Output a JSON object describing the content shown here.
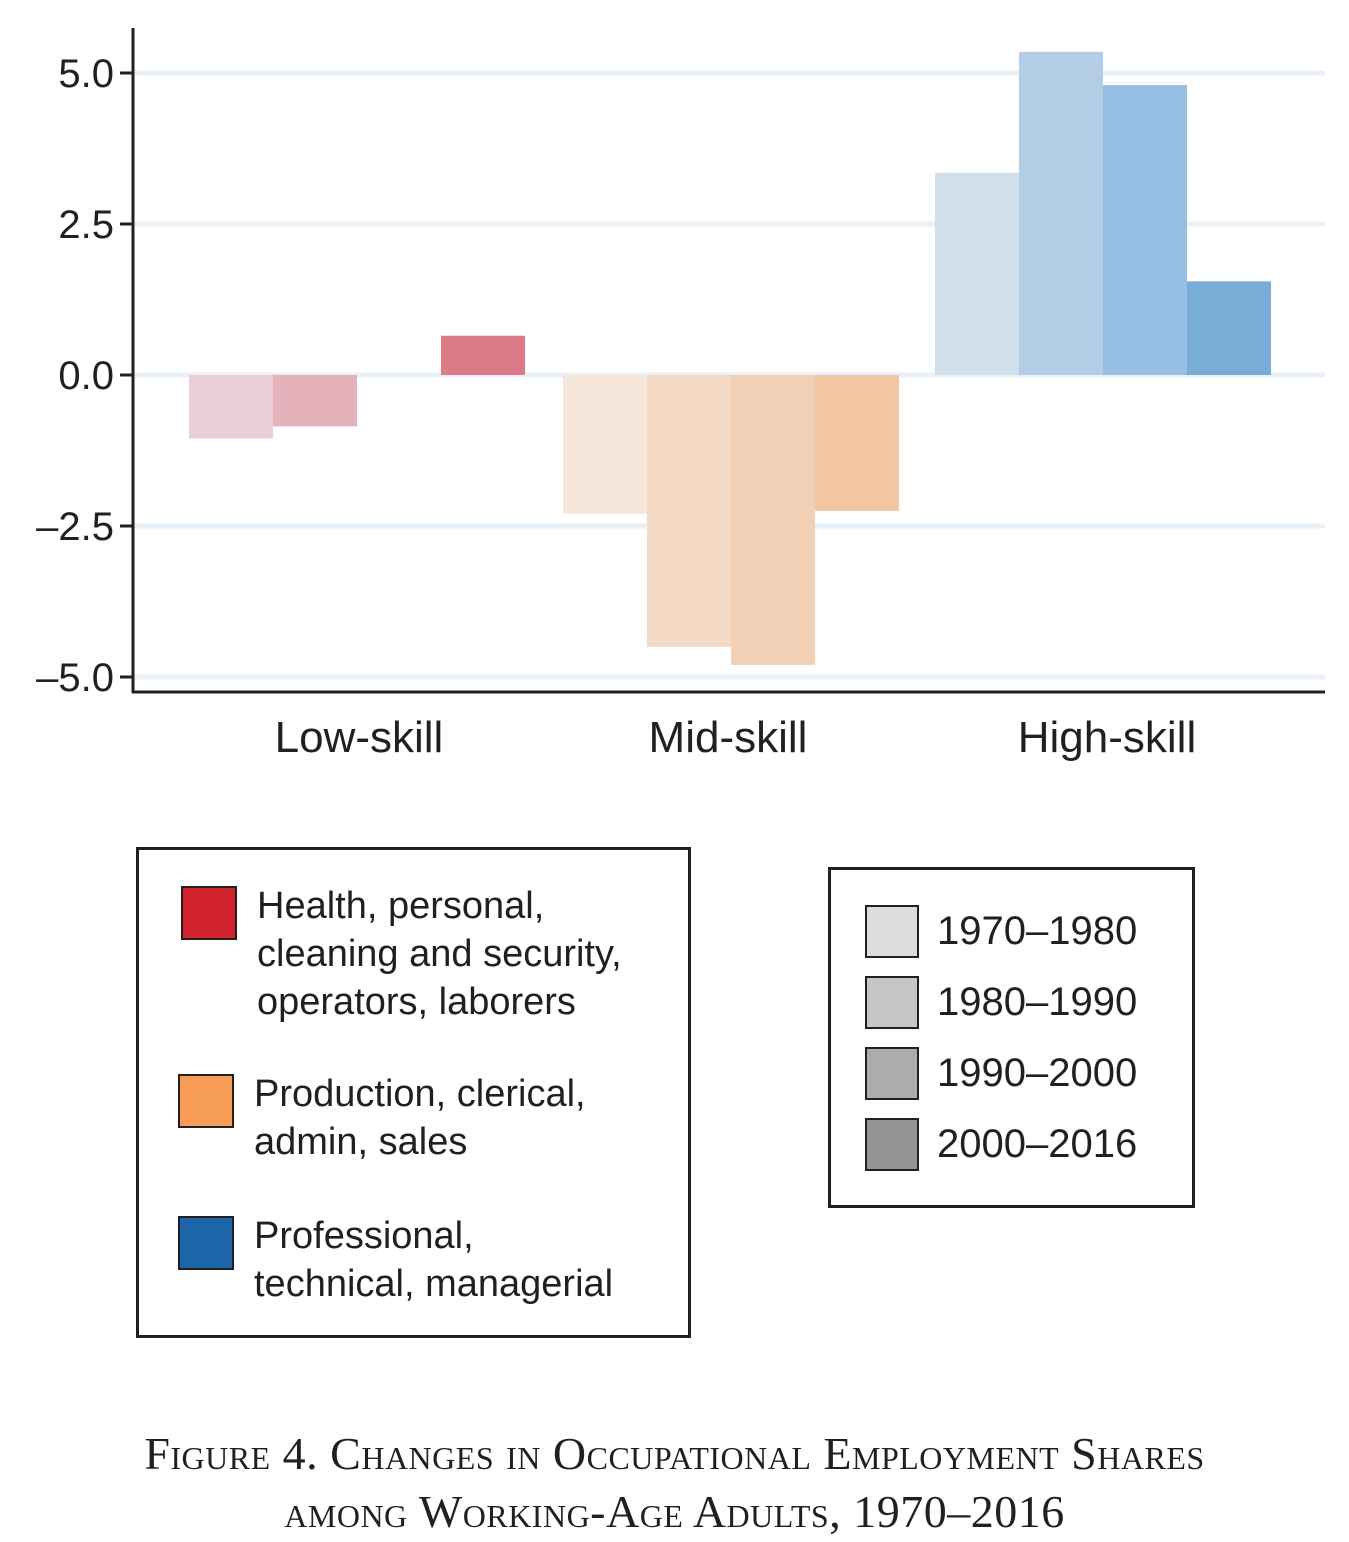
{
  "chart_data": {
    "type": "bar",
    "categories": [
      "Low-skill",
      "Mid-skill",
      "High-skill"
    ],
    "series": [
      {
        "name": "1970–1980",
        "values": [
          -1.05,
          -2.3,
          3.35
        ]
      },
      {
        "name": "1980–1990",
        "values": [
          -0.85,
          -4.5,
          5.35
        ]
      },
      {
        "name": "1990–2000",
        "values": [
          0.0,
          -4.8,
          4.8
        ]
      },
      {
        "name": "2000–2016",
        "values": [
          0.65,
          -2.25,
          1.55
        ]
      }
    ],
    "yticks": [
      "5.0",
      "2.5",
      "0.0",
      "–2.5",
      "–5.0"
    ],
    "ytick_values": [
      5.0,
      2.5,
      0.0,
      -2.5,
      -5.0
    ],
    "ylim": [
      -5.25,
      5.75
    ],
    "grid": true,
    "group_colors": {
      "Low-skill": [
        "#eccfd6",
        "#e5b1ba",
        "#e39ca7",
        "#dc7b87"
      ],
      "Mid-skill": [
        "#f6e7da",
        "#f4dac4",
        "#f2d0b5",
        "#f3c6a2"
      ],
      "High-skill": [
        "#d1dfeb",
        "#b3cde6",
        "#97bfe3",
        "#79acd6"
      ]
    },
    "title": "",
    "xlabel": "",
    "ylabel": ""
  },
  "legend_categories": [
    {
      "label": "Health, personal,\ncleaning and security,\noperators, laborers",
      "color": "#cf222c"
    },
    {
      "label": "Production, clerical,\nadmin, sales",
      "color": "#f79c56"
    },
    {
      "label": "Professional,\ntechnical, managerial",
      "color": "#1d64a9"
    }
  ],
  "legend_periods": [
    {
      "label": "1970–1980",
      "color": "#dcdcdc"
    },
    {
      "label": "1980–1990",
      "color": "#c6c6c6"
    },
    {
      "label": "1990–2000",
      "color": "#acacac"
    },
    {
      "label": "2000–2016",
      "color": "#939393"
    }
  ],
  "caption": {
    "line1": "Figure 4. Changes in Occupational Employment Shares",
    "line2": "among Working-Age Adults, 1970–2016"
  }
}
